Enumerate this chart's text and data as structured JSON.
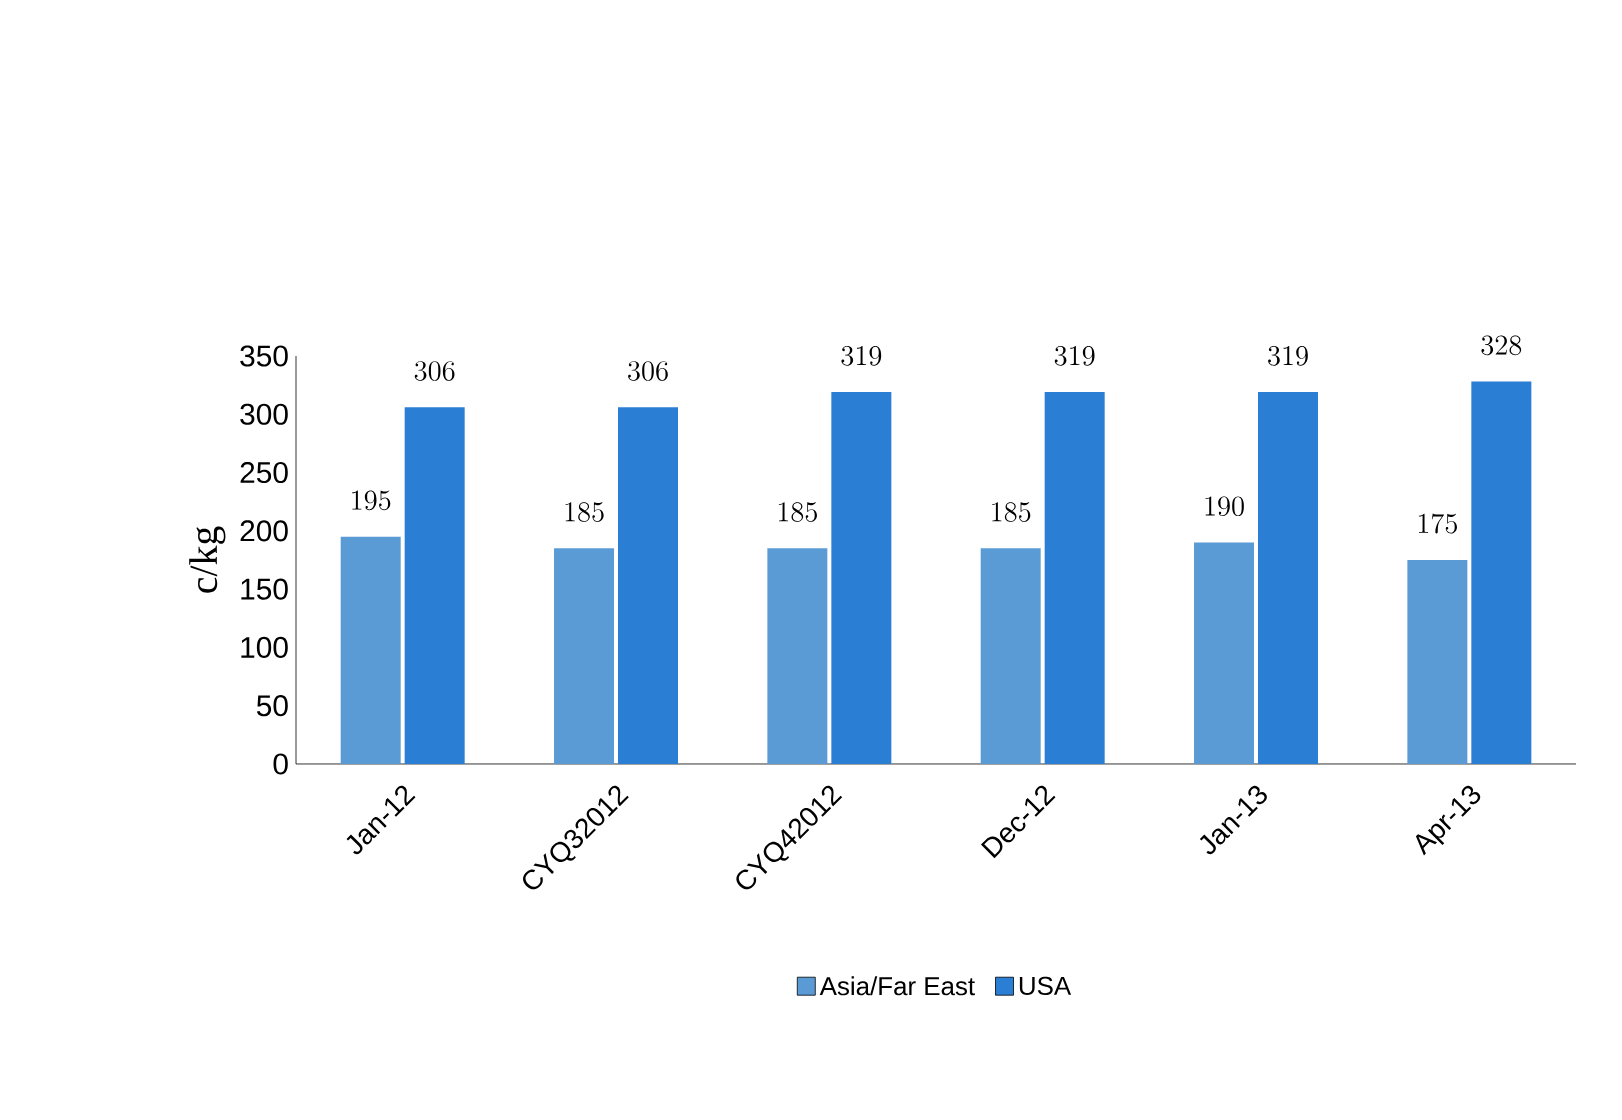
{
  "chart_data": {
    "type": "bar",
    "ylabel": "c/kg",
    "categories": [
      "Jan-12",
      "CYQ32012",
      "CYQ42012",
      "Dec-12",
      "Jan-13",
      "Apr-13"
    ],
    "series": [
      {
        "name": "Asia/Far East",
        "color": "#5b9bd5",
        "values": [
          195,
          185,
          185,
          185,
          190,
          175
        ]
      },
      {
        "name": "USA",
        "color": "#2a7fd4",
        "values": [
          306,
          306,
          319,
          319,
          319,
          328
        ]
      }
    ],
    "ylim": [
      0,
      350
    ],
    "yticks": [
      0,
      50,
      100,
      150,
      200,
      250,
      300,
      350
    ],
    "data_labels": true,
    "legend": "bottom",
    "grid": false
  }
}
